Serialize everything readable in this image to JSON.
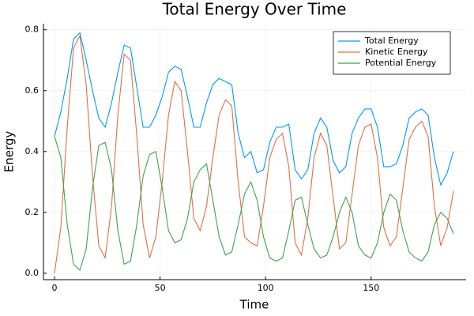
{
  "chart_data": {
    "type": "line",
    "title": "Total Energy Over Time",
    "x_label": "Time",
    "y_label": "Energy",
    "x": [
      0,
      3,
      6,
      9,
      12,
      15,
      18,
      21,
      24,
      27,
      30,
      33,
      36,
      39,
      42,
      45,
      48,
      51,
      54,
      57,
      60,
      63,
      66,
      69,
      72,
      75,
      78,
      81,
      84,
      87,
      90,
      93,
      96,
      99,
      102,
      105,
      108,
      111,
      114,
      117,
      120,
      123,
      126,
      129,
      132,
      135,
      138,
      141,
      144,
      147,
      150,
      153,
      156,
      159,
      162,
      165,
      168,
      171,
      174,
      177,
      180,
      183,
      186,
      189
    ],
    "series": [
      {
        "name": "Total Energy",
        "color": "#009af9",
        "values": [
          0.45,
          0.53,
          0.64,
          0.77,
          0.79,
          0.7,
          0.6,
          0.51,
          0.48,
          0.56,
          0.66,
          0.75,
          0.74,
          0.61,
          0.48,
          0.48,
          0.52,
          0.58,
          0.66,
          0.68,
          0.67,
          0.58,
          0.48,
          0.48,
          0.56,
          0.62,
          0.64,
          0.63,
          0.62,
          0.46,
          0.38,
          0.4,
          0.33,
          0.34,
          0.43,
          0.48,
          0.48,
          0.49,
          0.34,
          0.31,
          0.34,
          0.46,
          0.51,
          0.48,
          0.37,
          0.33,
          0.35,
          0.46,
          0.51,
          0.54,
          0.54,
          0.48,
          0.35,
          0.35,
          0.36,
          0.42,
          0.51,
          0.53,
          0.54,
          0.52,
          0.38,
          0.29,
          0.33,
          0.4
        ]
      },
      {
        "name": "Kinetic Energy",
        "color": "#e26f46",
        "values": [
          0.0,
          0.15,
          0.48,
          0.74,
          0.78,
          0.62,
          0.32,
          0.09,
          0.05,
          0.22,
          0.52,
          0.72,
          0.7,
          0.45,
          0.16,
          0.05,
          0.12,
          0.3,
          0.52,
          0.63,
          0.6,
          0.4,
          0.18,
          0.14,
          0.22,
          0.38,
          0.52,
          0.57,
          0.55,
          0.3,
          0.12,
          0.1,
          0.09,
          0.22,
          0.38,
          0.44,
          0.46,
          0.35,
          0.1,
          0.06,
          0.18,
          0.38,
          0.46,
          0.42,
          0.25,
          0.08,
          0.1,
          0.26,
          0.42,
          0.48,
          0.49,
          0.38,
          0.15,
          0.09,
          0.12,
          0.28,
          0.44,
          0.48,
          0.5,
          0.45,
          0.22,
          0.09,
          0.15,
          0.27
        ]
      },
      {
        "name": "Potential Energy",
        "color": "#3da44d",
        "values": [
          0.45,
          0.38,
          0.16,
          0.03,
          0.01,
          0.08,
          0.28,
          0.42,
          0.43,
          0.34,
          0.14,
          0.03,
          0.04,
          0.16,
          0.32,
          0.39,
          0.4,
          0.28,
          0.14,
          0.1,
          0.11,
          0.18,
          0.3,
          0.34,
          0.36,
          0.24,
          0.12,
          0.06,
          0.07,
          0.16,
          0.26,
          0.3,
          0.24,
          0.12,
          0.05,
          0.04,
          0.05,
          0.14,
          0.24,
          0.25,
          0.16,
          0.08,
          0.05,
          0.06,
          0.12,
          0.2,
          0.25,
          0.2,
          0.09,
          0.06,
          0.05,
          0.1,
          0.2,
          0.26,
          0.24,
          0.14,
          0.07,
          0.05,
          0.04,
          0.07,
          0.16,
          0.2,
          0.18,
          0.13
        ]
      }
    ],
    "xlim": [
      -5.25,
      195
    ],
    "ylim": [
      -0.021,
      0.82
    ],
    "xticks": [
      0,
      50,
      100,
      150
    ],
    "yticks": [
      {
        "value": 0,
        "label": "0.0"
      },
      0.2,
      0.4,
      0.6,
      0.8
    ],
    "grid": true,
    "legend": "upper right"
  }
}
